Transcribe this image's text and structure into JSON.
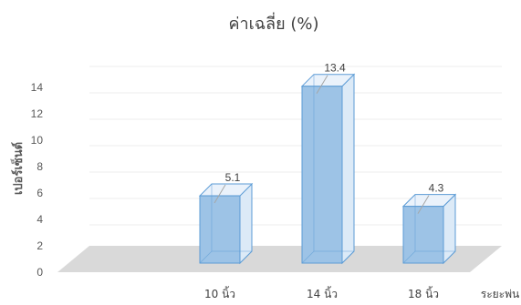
{
  "chart_data": {
    "type": "bar",
    "title": "ค่าเฉลี่ย (%)",
    "xlabel": "ระยะพ่น",
    "ylabel": "เปอร์เซ็นต์",
    "categories": [
      "10 นิ้ว",
      "14 นิ้ว",
      "18 นิ้ว"
    ],
    "values": [
      5.1,
      13.4,
      4.3
    ],
    "data_labels": [
      "5.1",
      "13.4",
      "4.3"
    ],
    "ylim": [
      0,
      14
    ],
    "yticks": [
      0,
      2,
      4,
      6,
      8,
      10,
      12,
      14
    ],
    "grid": true,
    "style": "3d-column",
    "colors": {
      "bar_front": "#9DC3E6",
      "bar_stroke": "#5B9BD5",
      "floor": "#D9D9D9",
      "grid": "#EDEDED"
    }
  }
}
